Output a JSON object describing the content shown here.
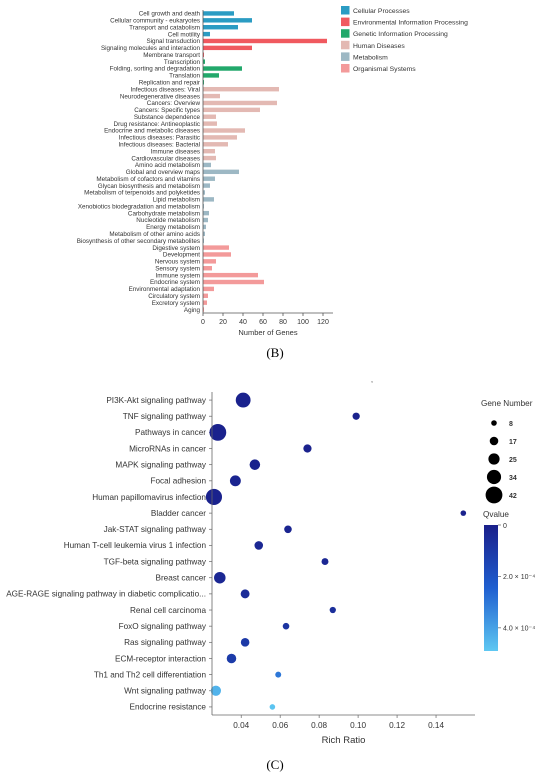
{
  "panels": [
    {
      "caption": "(B)"
    },
    {
      "caption": "(C)"
    }
  ],
  "chart_data": [
    {
      "type": "bar",
      "orientation": "horizontal",
      "xlabel": "Number of Genes",
      "xlim": [
        0,
        130
      ],
      "xticks": [
        0,
        20,
        40,
        60,
        80,
        100,
        120
      ],
      "grid": false,
      "legend_position": "top-right",
      "legend": [
        {
          "name": "Cellular Processes",
          "color": "#2b9cc3"
        },
        {
          "name": "Environmental Information Processing",
          "color": "#f0595f"
        },
        {
          "name": "Genetic Information Processing",
          "color": "#22a86b"
        },
        {
          "name": "Human Diseases",
          "color": "#e3b9b3"
        },
        {
          "name": "Metabolism",
          "color": "#9db8c4"
        },
        {
          "name": "Organismal Systems",
          "color": "#f39a9a"
        }
      ],
      "categories": [
        "Cell growth and death",
        "Cellular community - eukaryotes",
        "Transport and catabolism",
        "Cell motility",
        "Signal transduction",
        "Signaling molecules and interaction",
        "Membrane transport",
        "Transcription",
        "Folding, sorting and degradation",
        "Translation",
        "Replication and repair",
        "Infectious diseases: Viral",
        "Neurodegenerative diseases",
        "Cancers: Overview",
        "Cancers: Specific types",
        "Substance dependence",
        "Drug resistance: Antineoplastic",
        "Endocrine and metabolic diseases",
        "Infectious diseases: Parasitic",
        "Infectious diseases: Bacterial",
        "Immune diseases",
        "Cardiovascular diseases",
        "Amino acid metabolism",
        "Global and overview maps",
        "Metabolism of cofactors and vitamins",
        "Glycan biosynthesis and metabolism",
        "Metabolism of terpenoids and polyketides",
        "Lipid metabolism",
        "Xenobiotics biodegradation and metabolism",
        "Carbohydrate metabolism",
        "Nucleotide metabolism",
        "Energy metabolism",
        "Metabolism of other amino acids",
        "Biosynthesis of other secondary metabolites",
        "Digestive system",
        "Development",
        "Nervous system",
        "Sensory system",
        "Immune system",
        "Endocrine system",
        "Environmental adaptation",
        "Circulatory system",
        "Excretory system",
        "Aging"
      ],
      "groups": [
        0,
        0,
        0,
        0,
        1,
        1,
        1,
        2,
        2,
        2,
        2,
        3,
        3,
        3,
        3,
        3,
        3,
        3,
        3,
        3,
        3,
        3,
        4,
        4,
        4,
        4,
        4,
        4,
        4,
        4,
        4,
        4,
        4,
        4,
        5,
        5,
        5,
        5,
        5,
        5,
        5,
        5,
        5,
        5
      ],
      "values": [
        31,
        49,
        35,
        7,
        124,
        49,
        1,
        2,
        39,
        16,
        1,
        76,
        17,
        74,
        57,
        13,
        14,
        42,
        34,
        25,
        12,
        13,
        8,
        36,
        12,
        7,
        2,
        11,
        1,
        6,
        5,
        3,
        2,
        1,
        26,
        28,
        13,
        9,
        55,
        61,
        11,
        5,
        4,
        1
      ]
    },
    {
      "type": "scatter",
      "xlabel": "Rich Ratio",
      "xlim": [
        0.025,
        0.16
      ],
      "xticks": [
        0.04,
        0.06,
        0.08,
        0.1,
        0.12,
        0.14
      ],
      "xtick_labels": [
        "0.04",
        "0.06",
        "0.08",
        "0.10",
        "0.12",
        "0.14"
      ],
      "grid": false,
      "legend_position": "right",
      "size_legend": {
        "title": "Gene Number",
        "values": [
          8,
          17,
          25,
          34,
          42
        ]
      },
      "color_legend": {
        "title": "Qvalue",
        "tick_labels": [
          "0",
          "2.0 × 10⁻⁴",
          "4.0 × 10⁻⁴"
        ],
        "ticks": [
          0,
          0.0002,
          0.0004
        ],
        "range": [
          0,
          0.00049
        ],
        "colors": [
          "#1a1f8a",
          "#1f5fd0",
          "#5ec8f2"
        ]
      },
      "categories": [
        "PI3K-Akt signaling pathway",
        "TNF signaling pathway",
        "Pathways in cancer",
        "MicroRNAs in cancer",
        "MAPK signaling pathway",
        "Focal adhesion",
        "Human papillomavirus infection",
        "Bladder cancer",
        "Jak-STAT signaling pathway",
        "Human T-cell leukemia virus 1 infection",
        "TGF-beta signaling pathway",
        "Breast cancer",
        "AGE-RAGE signaling pathway in diabetic complicatio...",
        "Renal cell carcinoma",
        "FoxO signaling pathway",
        "Ras signaling pathway",
        "ECM-receptor interaction",
        "Th1 and Th2 cell differentiation",
        "Wnt signaling pathway",
        "Endocrine resistance"
      ],
      "x": [
        0.041,
        0.099,
        0.028,
        0.074,
        0.047,
        0.037,
        0.026,
        0.154,
        0.064,
        0.049,
        0.083,
        0.029,
        0.042,
        0.087,
        0.063,
        0.042,
        0.035,
        0.059,
        0.027,
        0.056
      ],
      "size": [
        36,
        13,
        42,
        16,
        23,
        24,
        40,
        8,
        14,
        17,
        12,
        26,
        18,
        10,
        11,
        17,
        20,
        9,
        22,
        8
      ],
      "qvalue": [
        1e-05,
        1e-05,
        1e-05,
        1e-05,
        1e-05,
        2e-05,
        1e-05,
        1e-05,
        2e-05,
        3e-05,
        3e-05,
        3e-05,
        5e-05,
        6e-05,
        8e-05,
        0.0001,
        0.00011,
        0.0003,
        0.00044,
        0.00048
      ]
    }
  ]
}
